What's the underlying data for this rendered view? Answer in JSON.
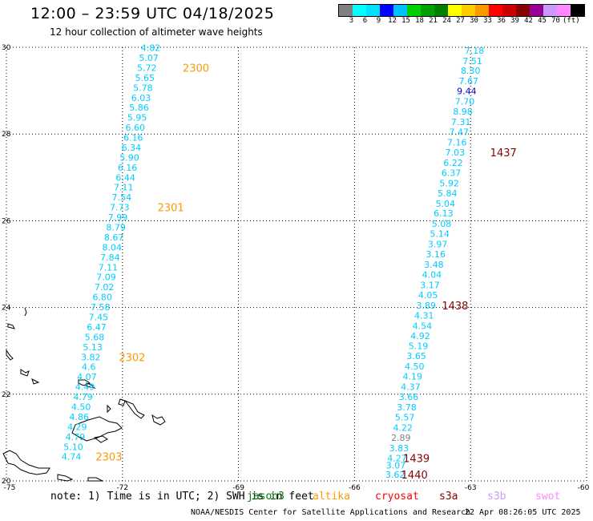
{
  "header": {
    "title": "12:00 – 23:59 UTC 04/18/2025",
    "subtitle": "12 hour collection of altimeter wave heights"
  },
  "colorbar": {
    "colors": [
      "#808080",
      "#00ffff",
      "#00e0ff",
      "#0000ff",
      "#00c0ff",
      "#00d000",
      "#00a000",
      "#008000",
      "#ffff00",
      "#ffcc00",
      "#ff9900",
      "#ff0000",
      "#cc0000",
      "#880000",
      "#990099",
      "#cc99ff",
      "#ff88ff",
      "#000000"
    ],
    "labels": [
      "3",
      "6",
      "9",
      "12",
      "15",
      "18",
      "21",
      "24",
      "27",
      "30",
      "33",
      "36",
      "39",
      "42",
      "45",
      "70",
      "(ft)"
    ]
  },
  "axes": {
    "x_ticks": [
      "-75",
      "-72",
      "-69",
      "-66",
      "-63",
      "-60"
    ],
    "y_ticks": [
      "30",
      "28",
      "26",
      "24",
      "22",
      "20"
    ]
  },
  "map": {
    "lon_range": [
      -75,
      -60
    ],
    "lat_range": [
      20,
      30
    ]
  },
  "track_left": {
    "color": "#00ccff",
    "points": [
      {
        "lat": 29.99,
        "lon": -71.27,
        "v": "4.82"
      },
      {
        "lat": 29.76,
        "lon": -71.32,
        "v": "5.07"
      },
      {
        "lat": 29.53,
        "lon": -71.37,
        "v": "5.72"
      },
      {
        "lat": 29.3,
        "lon": -71.42,
        "v": "5.65"
      },
      {
        "lat": 29.07,
        "lon": -71.47,
        "v": "5.78"
      },
      {
        "lat": 28.84,
        "lon": -71.52,
        "v": "6.03"
      },
      {
        "lat": 28.61,
        "lon": -71.57,
        "v": "5.86"
      },
      {
        "lat": 28.38,
        "lon": -71.62,
        "v": "5.95"
      },
      {
        "lat": 28.15,
        "lon": -71.67,
        "v": "6.60"
      },
      {
        "lat": 27.92,
        "lon": -71.72,
        "v": "6.16"
      },
      {
        "lat": 27.69,
        "lon": -71.77,
        "v": "6.34"
      },
      {
        "lat": 27.46,
        "lon": -71.82,
        "v": "5.90"
      },
      {
        "lat": 27.23,
        "lon": -71.87,
        "v": "6.16"
      },
      {
        "lat": 27.0,
        "lon": -71.92,
        "v": "6.44"
      },
      {
        "lat": 26.77,
        "lon": -71.97,
        "v": "7.11"
      },
      {
        "lat": 26.54,
        "lon": -72.02,
        "v": "7.54"
      },
      {
        "lat": 26.31,
        "lon": -72.07,
        "v": "7.73"
      },
      {
        "lat": 26.08,
        "lon": -72.12,
        "v": "7.99"
      },
      {
        "lat": 25.85,
        "lon": -72.17,
        "v": "8.79"
      },
      {
        "lat": 25.62,
        "lon": -72.22,
        "v": "8.67"
      },
      {
        "lat": 25.39,
        "lon": -72.27,
        "v": "8.04"
      },
      {
        "lat": 25.16,
        "lon": -72.32,
        "v": "7.84"
      },
      {
        "lat": 24.93,
        "lon": -72.37,
        "v": "7.11"
      },
      {
        "lat": 24.7,
        "lon": -72.42,
        "v": "7.09"
      },
      {
        "lat": 24.47,
        "lon": -72.47,
        "v": "7.02"
      },
      {
        "lat": 24.24,
        "lon": -72.52,
        "v": "6.80"
      },
      {
        "lat": 24.01,
        "lon": -72.57,
        "v": "7.58"
      },
      {
        "lat": 23.78,
        "lon": -72.62,
        "v": "7.45"
      },
      {
        "lat": 23.55,
        "lon": -72.67,
        "v": "6.47"
      },
      {
        "lat": 23.32,
        "lon": -72.72,
        "v": "5.68"
      },
      {
        "lat": 23.09,
        "lon": -72.77,
        "v": "5.13"
      },
      {
        "lat": 22.86,
        "lon": -72.82,
        "v": "3.82"
      },
      {
        "lat": 22.63,
        "lon": -72.87,
        "v": "4.6"
      },
      {
        "lat": 22.4,
        "lon": -72.92,
        "v": "4.07"
      },
      {
        "lat": 22.17,
        "lon": -72.97,
        "v": "4.49"
      },
      {
        "lat": 21.94,
        "lon": -73.02,
        "v": "4.79"
      },
      {
        "lat": 21.71,
        "lon": -73.07,
        "v": "4.50"
      },
      {
        "lat": 21.48,
        "lon": -73.12,
        "v": "4.86"
      },
      {
        "lat": 21.25,
        "lon": -73.17,
        "v": "4.29"
      },
      {
        "lat": 21.02,
        "lon": -73.22,
        "v": "4.79"
      },
      {
        "lat": 20.79,
        "lon": -73.27,
        "v": "5.10"
      },
      {
        "lat": 20.56,
        "lon": -73.32,
        "v": "4.74"
      }
    ],
    "time_labels": [
      {
        "lat": 29.53,
        "lon": -70.1,
        "t": "2300"
      },
      {
        "lat": 26.31,
        "lon": -70.75,
        "t": "2301"
      },
      {
        "lat": 22.86,
        "lon": -71.75,
        "t": "2302"
      },
      {
        "lat": 20.56,
        "lon": -72.35,
        "t": "2303"
      }
    ],
    "time_color": "#ff9900"
  },
  "track_right": {
    "color": "#00ccff",
    "points": [
      {
        "lat": 29.93,
        "lon": -62.9,
        "v": "7.18"
      },
      {
        "lat": 29.69,
        "lon": -62.95,
        "v": "7.51"
      },
      {
        "lat": 29.46,
        "lon": -63.0,
        "v": "8.30"
      },
      {
        "lat": 29.22,
        "lon": -63.05,
        "v": "7.67"
      },
      {
        "lat": 28.99,
        "lon": -63.1,
        "v": "9.44",
        "c": "#0000cc"
      },
      {
        "lat": 28.75,
        "lon": -63.15,
        "v": "7.70"
      },
      {
        "lat": 28.52,
        "lon": -63.2,
        "v": "8.98"
      },
      {
        "lat": 28.28,
        "lon": -63.25,
        "v": "7.31"
      },
      {
        "lat": 28.05,
        "lon": -63.3,
        "v": "7.47"
      },
      {
        "lat": 27.81,
        "lon": -63.35,
        "v": "7.16"
      },
      {
        "lat": 27.58,
        "lon": -63.4,
        "v": "7.03"
      },
      {
        "lat": 27.34,
        "lon": -63.45,
        "v": "6.22"
      },
      {
        "lat": 27.11,
        "lon": -63.5,
        "v": "6.37"
      },
      {
        "lat": 26.87,
        "lon": -63.55,
        "v": "5.92"
      },
      {
        "lat": 26.64,
        "lon": -63.6,
        "v": "5.84"
      },
      {
        "lat": 26.4,
        "lon": -63.65,
        "v": "5.04"
      },
      {
        "lat": 26.17,
        "lon": -63.7,
        "v": "6.13"
      },
      {
        "lat": 25.93,
        "lon": -63.75,
        "v": "5.08"
      },
      {
        "lat": 25.7,
        "lon": -63.8,
        "v": "5.14"
      },
      {
        "lat": 25.46,
        "lon": -63.85,
        "v": "3.97"
      },
      {
        "lat": 25.23,
        "lon": -63.9,
        "v": "3.16"
      },
      {
        "lat": 24.99,
        "lon": -63.95,
        "v": "3.48"
      },
      {
        "lat": 24.76,
        "lon": -64.0,
        "v": "4.04"
      },
      {
        "lat": 24.52,
        "lon": -64.05,
        "v": "3.17"
      },
      {
        "lat": 24.29,
        "lon": -64.1,
        "v": "4.05"
      },
      {
        "lat": 24.05,
        "lon": -64.15,
        "v": "3.89"
      },
      {
        "lat": 23.82,
        "lon": -64.2,
        "v": "4.31"
      },
      {
        "lat": 23.58,
        "lon": -64.25,
        "v": "4.54"
      },
      {
        "lat": 23.35,
        "lon": -64.3,
        "v": "4.92"
      },
      {
        "lat": 23.11,
        "lon": -64.35,
        "v": "5.19"
      },
      {
        "lat": 22.88,
        "lon": -64.4,
        "v": "3.65"
      },
      {
        "lat": 22.64,
        "lon": -64.45,
        "v": "4.50"
      },
      {
        "lat": 22.41,
        "lon": -64.5,
        "v": "4.19"
      },
      {
        "lat": 22.17,
        "lon": -64.55,
        "v": "4.37"
      },
      {
        "lat": 21.94,
        "lon": -64.6,
        "v": "3.66"
      },
      {
        "lat": 21.7,
        "lon": -64.65,
        "v": "3.78"
      },
      {
        "lat": 21.47,
        "lon": -64.7,
        "v": "5.57"
      },
      {
        "lat": 21.23,
        "lon": -64.75,
        "v": "4.22"
      },
      {
        "lat": 21.0,
        "lon": -64.8,
        "v": "2.89",
        "c": "#808080"
      },
      {
        "lat": 20.76,
        "lon": -64.85,
        "v": "3.83"
      },
      {
        "lat": 20.53,
        "lon": -64.9,
        "v": "4.27"
      },
      {
        "lat": 20.36,
        "lon": -64.93,
        "v": "3.07"
      },
      {
        "lat": 20.15,
        "lon": -64.95,
        "v": "3.62"
      }
    ],
    "time_labels": [
      {
        "lat": 27.58,
        "lon": -62.15,
        "t": "1437"
      },
      {
        "lat": 24.05,
        "lon": -63.4,
        "t": "1438"
      },
      {
        "lat": 20.53,
        "lon": -64.4,
        "t": "1439"
      },
      {
        "lat": 20.15,
        "lon": -64.45,
        "t": "1440"
      }
    ],
    "time_color": "#880000"
  },
  "footer": {
    "note": "note: 1) Time is in UTC; 2) SWH is in feet",
    "satellites": [
      {
        "name": "jason3",
        "color": "#008000"
      },
      {
        "name": "altika",
        "color": "#ff9900"
      },
      {
        "name": "cryosat",
        "color": "#ff0000"
      },
      {
        "name": "s3a",
        "color": "#880000"
      },
      {
        "name": "s3b",
        "color": "#cc99ff"
      },
      {
        "name": "swot",
        "color": "#ff88ff"
      }
    ],
    "credit": "NOAA/NESDIS Center for Satellite Applications and Research",
    "timestamp": "22 Apr 08:26:05 UTC 2025"
  }
}
